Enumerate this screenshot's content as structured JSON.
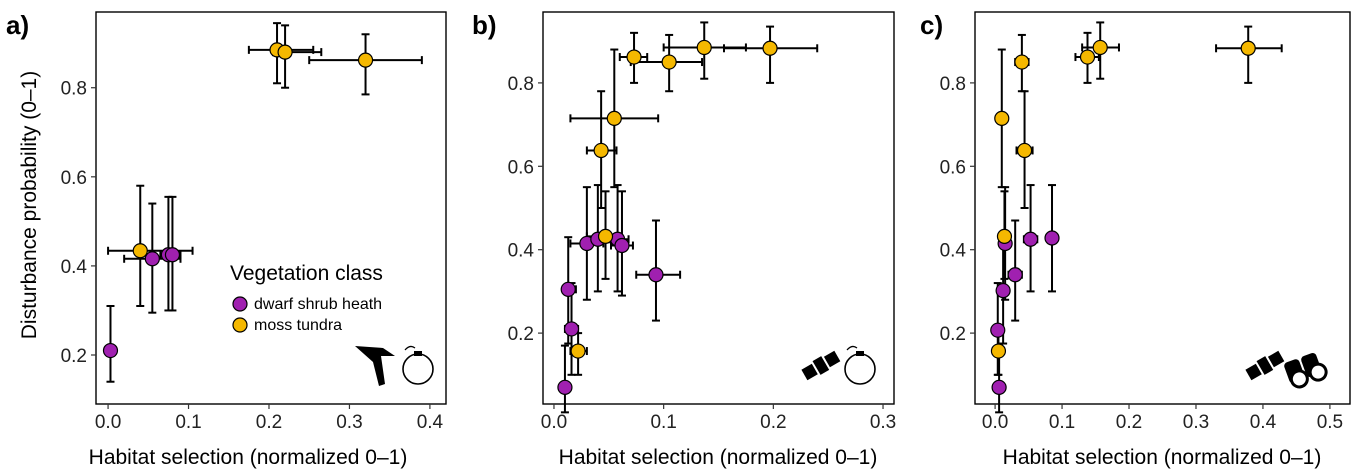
{
  "figure": {
    "ylabel": "Disturbance probability (0–1)",
    "legend": {
      "title": "Vegetation class",
      "placement": "lower-right of panel a",
      "items": [
        {
          "label": "dwarf shrub heath",
          "color": "#a020b0"
        },
        {
          "label": "moss tundra",
          "color": "#f5b800"
        }
      ]
    }
  },
  "chart_data": [
    {
      "type": "scatter",
      "panel_label": "a)",
      "xlabel": "Habitat selection (normalized 0–1)",
      "xlim": [
        -0.015,
        0.42
      ],
      "ylim": [
        0.09,
        0.97
      ],
      "xticks": [
        "0.0",
        "0.1",
        "0.2",
        "0.3",
        "0.4"
      ],
      "xtick_values": [
        0,
        0.1,
        0.2,
        0.3,
        0.4
      ],
      "yticks": [
        "0.2",
        "0.4",
        "0.6",
        "0.8"
      ],
      "ytick_values": [
        0.2,
        0.4,
        0.6,
        0.8
      ],
      "icon": "drone-and-gps-collar-icon",
      "series": [
        {
          "name": "dwarf shrub heath",
          "color": "#a020b0",
          "points": [
            {
              "x": 0.003,
              "y": 0.21,
              "xerr": [
                0.003,
                0.003
              ],
              "yerr": [
                0.14,
                0.31
              ]
            },
            {
              "x": 0.055,
              "y": 0.416,
              "xerr": [
                0.02,
                0.09
              ],
              "yerr": [
                0.295,
                0.54
              ]
            },
            {
              "x": 0.075,
              "y": 0.425,
              "xerr": [
                0.065,
                0.087
              ],
              "yerr": [
                0.3,
                0.555
              ]
            },
            {
              "x": 0.08,
              "y": 0.425,
              "xerr": [
                0.07,
                0.09
              ],
              "yerr": [
                0.3,
                0.555
              ]
            }
          ]
        },
        {
          "name": "moss tundra",
          "color": "#f5b800",
          "points": [
            {
              "x": 0.04,
              "y": 0.434,
              "xerr": [
                0.0,
                0.105
              ],
              "yerr": [
                0.31,
                0.58
              ]
            },
            {
              "x": 0.21,
              "y": 0.885,
              "xerr": [
                0.175,
                0.255
              ],
              "yerr": [
                0.81,
                0.945
              ]
            },
            {
              "x": 0.22,
              "y": 0.88,
              "xerr": [
                0.205,
                0.265
              ],
              "yerr": [
                0.8,
                0.94
              ]
            },
            {
              "x": 0.32,
              "y": 0.862,
              "xerr": [
                0.25,
                0.39
              ],
              "yerr": [
                0.785,
                0.92
              ]
            }
          ]
        }
      ]
    },
    {
      "type": "scatter",
      "panel_label": "b)",
      "xlabel": "Habitat selection (normalized 0–1)",
      "xlim": [
        -0.01,
        0.31
      ],
      "ylim": [
        0.03,
        0.97
      ],
      "xticks": [
        "0.0",
        "0.1",
        "0.2",
        "0.3"
      ],
      "xtick_values": [
        0,
        0.1,
        0.2,
        0.3
      ],
      "yticks": [
        "0.2",
        "0.4",
        "0.6",
        "0.8"
      ],
      "ytick_values": [
        0.2,
        0.4,
        0.6,
        0.8
      ],
      "icon": "satellite-and-gps-collar-icon",
      "series": [
        {
          "name": "dwarf shrub heath",
          "color": "#a020b0",
          "points": [
            {
              "x": 0.01,
              "y": 0.07,
              "xerr": [
                0.008,
                0.012
              ],
              "yerr": [
                0.01,
                0.17
              ]
            },
            {
              "x": 0.013,
              "y": 0.305,
              "xerr": [
                0.008,
                0.02
              ],
              "yerr": [
                0.175,
                0.43
              ]
            },
            {
              "x": 0.016,
              "y": 0.21,
              "xerr": [
                0.01,
                0.022
              ],
              "yerr": [
                0.1,
                0.32
              ]
            },
            {
              "x": 0.03,
              "y": 0.415,
              "xerr": [
                0.015,
                0.045
              ],
              "yerr": [
                0.28,
                0.55
              ]
            },
            {
              "x": 0.04,
              "y": 0.425,
              "xerr": [
                0.03,
                0.05
              ],
              "yerr": [
                0.3,
                0.555
              ]
            },
            {
              "x": 0.058,
              "y": 0.425,
              "xerr": [
                0.048,
                0.068
              ],
              "yerr": [
                0.3,
                0.555
              ]
            },
            {
              "x": 0.062,
              "y": 0.41,
              "xerr": [
                0.052,
                0.072
              ],
              "yerr": [
                0.29,
                0.54
              ]
            },
            {
              "x": 0.093,
              "y": 0.34,
              "xerr": [
                0.075,
                0.115
              ],
              "yerr": [
                0.23,
                0.47
              ]
            }
          ]
        },
        {
          "name": "moss tundra",
          "color": "#f5b800",
          "points": [
            {
              "x": 0.022,
              "y": 0.157,
              "xerr": [
                0.015,
                0.03
              ],
              "yerr": [
                0.1,
                0.2
              ]
            },
            {
              "x": 0.043,
              "y": 0.638,
              "xerr": [
                0.03,
                0.057
              ],
              "yerr": [
                0.5,
                0.78
              ]
            },
            {
              "x": 0.047,
              "y": 0.432,
              "xerr": [
                0.03,
                0.06
              ],
              "yerr": [
                0.33,
                0.54
              ]
            },
            {
              "x": 0.055,
              "y": 0.715,
              "xerr": [
                0.015,
                0.095
              ],
              "yerr": [
                0.55,
                0.88
              ]
            },
            {
              "x": 0.073,
              "y": 0.862,
              "xerr": [
                0.06,
                0.085
              ],
              "yerr": [
                0.8,
                0.92
              ]
            },
            {
              "x": 0.105,
              "y": 0.85,
              "xerr": [
                0.07,
                0.135
              ],
              "yerr": [
                0.78,
                0.915
              ]
            },
            {
              "x": 0.137,
              "y": 0.885,
              "xerr": [
                0.1,
                0.175
              ],
              "yerr": [
                0.81,
                0.945
              ]
            },
            {
              "x": 0.197,
              "y": 0.883,
              "xerr": [
                0.155,
                0.24
              ],
              "yerr": [
                0.8,
                0.935
              ]
            }
          ]
        }
      ]
    },
    {
      "type": "scatter",
      "panel_label": "c)",
      "xlabel": "Habitat selection (normalized 0–1)",
      "xlim": [
        -0.03,
        0.53
      ],
      "ylim": [
        0.03,
        0.97
      ],
      "xticks": [
        "0.0",
        "0.1",
        "0.2",
        "0.3",
        "0.4",
        "0.5"
      ],
      "xtick_values": [
        0,
        0.1,
        0.2,
        0.3,
        0.4,
        0.5
      ],
      "yticks": [
        "0.2",
        "0.4",
        "0.6",
        "0.8"
      ],
      "ytick_values": [
        0.2,
        0.4,
        0.6,
        0.8
      ],
      "icon": "satellite-and-binoculars-icon",
      "series": [
        {
          "name": "dwarf shrub heath",
          "color": "#a020b0",
          "points": [
            {
              "x": 0.004,
              "y": 0.207,
              "xerr": [
                0.002,
                0.006
              ],
              "yerr": [
                0.1,
                0.32
              ]
            },
            {
              "x": 0.006,
              "y": 0.07,
              "xerr": [
                0.004,
                0.008
              ],
              "yerr": [
                0.01,
                0.17
              ]
            },
            {
              "x": 0.012,
              "y": 0.302,
              "xerr": [
                0.006,
                0.018
              ],
              "yerr": [
                0.175,
                0.43
              ]
            },
            {
              "x": 0.015,
              "y": 0.415,
              "xerr": [
                0.008,
                0.022
              ],
              "yerr": [
                0.28,
                0.55
              ]
            },
            {
              "x": 0.03,
              "y": 0.34,
              "xerr": [
                0.02,
                0.04
              ],
              "yerr": [
                0.23,
                0.47
              ]
            },
            {
              "x": 0.053,
              "y": 0.425,
              "xerr": [
                0.043,
                0.063
              ],
              "yerr": [
                0.3,
                0.555
              ]
            },
            {
              "x": 0.085,
              "y": 0.428,
              "xerr": [
                0.08,
                0.09
              ],
              "yerr": [
                0.3,
                0.555
              ]
            }
          ]
        },
        {
          "name": "moss tundra",
          "color": "#f5b800",
          "points": [
            {
              "x": 0.005,
              "y": 0.157,
              "xerr": [
                0.002,
                0.008
              ],
              "yerr": [
                0.1,
                0.2
              ]
            },
            {
              "x": 0.01,
              "y": 0.715,
              "xerr": [
                0.005,
                0.015
              ],
              "yerr": [
                0.55,
                0.88
              ]
            },
            {
              "x": 0.014,
              "y": 0.432,
              "xerr": [
                0.008,
                0.02
              ],
              "yerr": [
                0.33,
                0.54
              ]
            },
            {
              "x": 0.04,
              "y": 0.85,
              "xerr": [
                0.03,
                0.05
              ],
              "yerr": [
                0.78,
                0.915
              ]
            },
            {
              "x": 0.044,
              "y": 0.638,
              "xerr": [
                0.032,
                0.056
              ],
              "yerr": [
                0.5,
                0.78
              ]
            },
            {
              "x": 0.138,
              "y": 0.862,
              "xerr": [
                0.12,
                0.155
              ],
              "yerr": [
                0.8,
                0.92
              ]
            },
            {
              "x": 0.157,
              "y": 0.885,
              "xerr": [
                0.13,
                0.185
              ],
              "yerr": [
                0.81,
                0.945
              ]
            },
            {
              "x": 0.378,
              "y": 0.883,
              "xerr": [
                0.33,
                0.428
              ],
              "yerr": [
                0.8,
                0.935
              ]
            }
          ]
        }
      ]
    }
  ]
}
